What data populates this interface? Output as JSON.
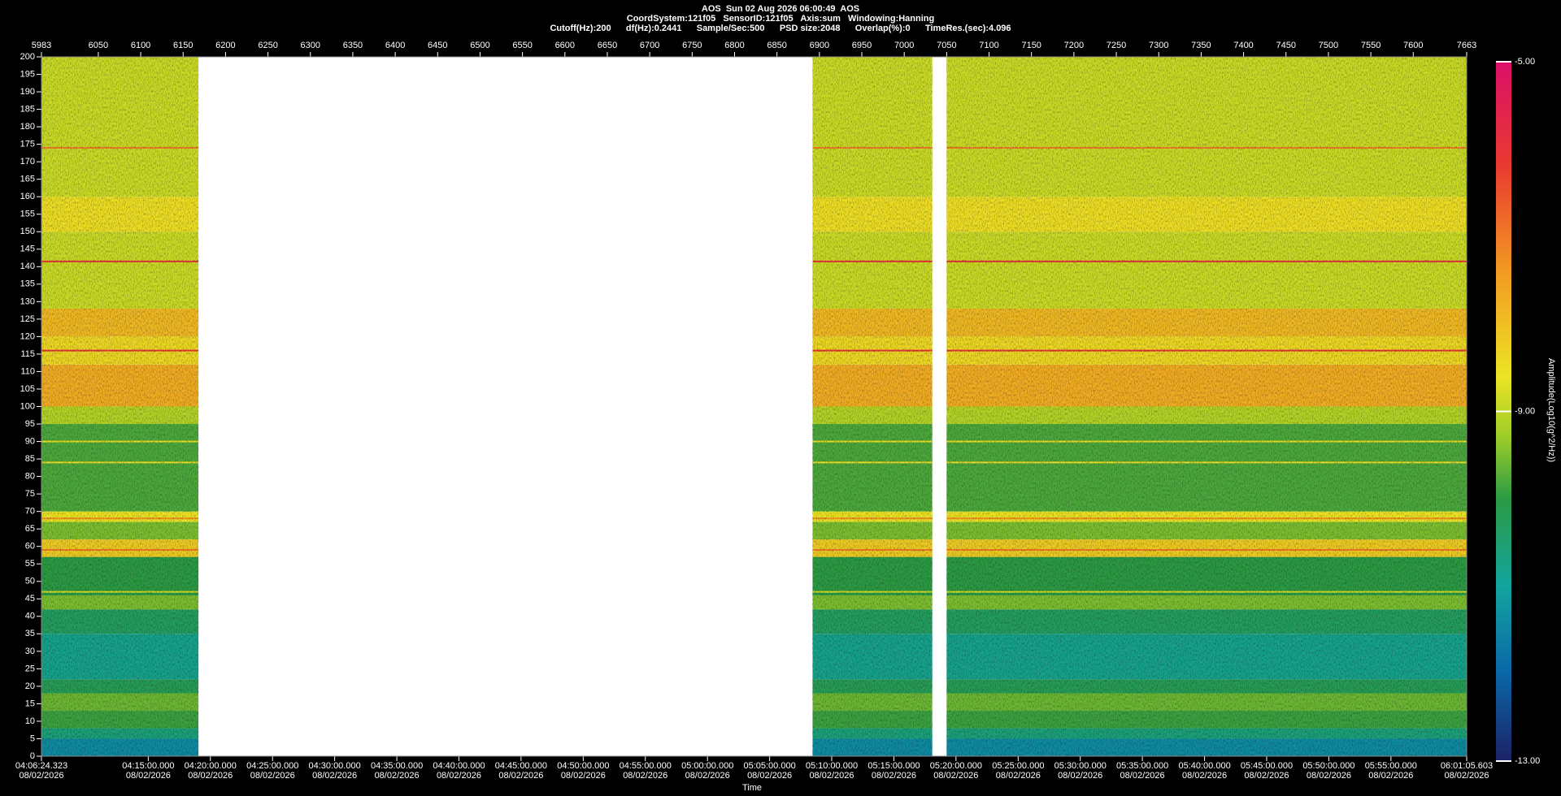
{
  "chart_data": {
    "type": "spectrogram",
    "title_lines": [
      "AOS  Sun 02 Aug 2026 06:00:49  AOS",
      "CoordSystem:121f05   SensorID:121f05   Axis:sum   Windowing:Hanning",
      "Cutoff(Hz):200      df(Hz):0.2441      Sample/Sec:500      PSD size:2048      Overlap(%):0      TimeRes.(sec):4.096"
    ],
    "xlim": [
      5983,
      7663
    ],
    "xticks": [
      5983,
      6050,
      6100,
      6150,
      6200,
      6250,
      6300,
      6350,
      6400,
      6450,
      6500,
      6550,
      6600,
      6650,
      6700,
      6750,
      6800,
      6850,
      6900,
      6950,
      7000,
      7050,
      7100,
      7150,
      7200,
      7250,
      7300,
      7350,
      7400,
      7450,
      7500,
      7550,
      7600,
      7663
    ],
    "time_ticks": [
      {
        "value": 5983,
        "label": "04:06:24.323",
        "date": "08/02/2026"
      },
      {
        "value": 6108.9,
        "label": "04:15:00.000",
        "date": "08/02/2026"
      },
      {
        "value": 6182.1,
        "label": "04:20:00.000",
        "date": "08/02/2026"
      },
      {
        "value": 6255.4,
        "label": "04:25:00.000",
        "date": "08/02/2026"
      },
      {
        "value": 6328.6,
        "label": "04:30:00.000",
        "date": "08/02/2026"
      },
      {
        "value": 6401.9,
        "label": "04:35:00.000",
        "date": "08/02/2026"
      },
      {
        "value": 6475.1,
        "label": "04:40:00.000",
        "date": "08/02/2026"
      },
      {
        "value": 6548.3,
        "label": "04:45:00.000",
        "date": "08/02/2026"
      },
      {
        "value": 6621.6,
        "label": "04:50:00.000",
        "date": "08/02/2026"
      },
      {
        "value": 6694.8,
        "label": "04:55:00.000",
        "date": "08/02/2026"
      },
      {
        "value": 6768.1,
        "label": "05:00:00.000",
        "date": "08/02/2026"
      },
      {
        "value": 6841.3,
        "label": "05:05:00.000",
        "date": "08/02/2026"
      },
      {
        "value": 6914.5,
        "label": "05:10:00.000",
        "date": "08/02/2026"
      },
      {
        "value": 6987.8,
        "label": "05:15:00.000",
        "date": "08/02/2026"
      },
      {
        "value": 7061.0,
        "label": "05:20:00.000",
        "date": "08/02/2026"
      },
      {
        "value": 7134.3,
        "label": "05:25:00.000",
        "date": "08/02/2026"
      },
      {
        "value": 7207.5,
        "label": "05:30:00.000",
        "date": "08/02/2026"
      },
      {
        "value": 7280.7,
        "label": "05:35:00.000",
        "date": "08/02/2026"
      },
      {
        "value": 7354.0,
        "label": "05:40:00.000",
        "date": "08/02/2026"
      },
      {
        "value": 7427.2,
        "label": "05:45:00.000",
        "date": "08/02/2026"
      },
      {
        "value": 7500.5,
        "label": "05:50:00.000",
        "date": "08/02/2026"
      },
      {
        "value": 7573.7,
        "label": "05:55:00.000",
        "date": "08/02/2026"
      },
      {
        "value": 7663,
        "label": "06:01:05.603",
        "date": "08/02/2026"
      }
    ],
    "xlabel": "Time",
    "ylim": [
      0,
      200
    ],
    "yticks": [
      0,
      5,
      10,
      15,
      20,
      25,
      30,
      35,
      40,
      45,
      50,
      55,
      60,
      65,
      70,
      75,
      80,
      85,
      90,
      95,
      100,
      105,
      110,
      115,
      120,
      125,
      130,
      135,
      140,
      145,
      150,
      155,
      160,
      165,
      170,
      175,
      180,
      185,
      190,
      195,
      200
    ],
    "segments": [
      [
        5983,
        6168
      ],
      [
        6892,
        7033
      ],
      [
        7050,
        7663
      ]
    ],
    "bands": [
      {
        "from": 0,
        "to": 5,
        "level": -11.4
      },
      {
        "from": 5,
        "to": 8,
        "level": -10.6
      },
      {
        "from": 8,
        "to": 13,
        "level": -9.9
      },
      {
        "from": 13,
        "to": 18,
        "level": -9.6
      },
      {
        "from": 18,
        "to": 22,
        "level": -10.2
      },
      {
        "from": 22,
        "to": 35,
        "level": -10.8
      },
      {
        "from": 35,
        "to": 42,
        "level": -10.3
      },
      {
        "from": 42,
        "to": 46,
        "level": -9.5
      },
      {
        "from": 46,
        "to": 57,
        "level": -10.0
      },
      {
        "from": 57,
        "to": 62,
        "level": -8.2
      },
      {
        "from": 62,
        "to": 67,
        "level": -9.5
      },
      {
        "from": 67,
        "to": 70,
        "level": -8.6
      },
      {
        "from": 70,
        "to": 95,
        "level": -9.8
      },
      {
        "from": 95,
        "to": 100,
        "level": -9.1
      },
      {
        "from": 100,
        "to": 112,
        "level": -7.7
      },
      {
        "from": 112,
        "to": 120,
        "level": -8.4
      },
      {
        "from": 120,
        "to": 128,
        "level": -7.9
      },
      {
        "from": 128,
        "to": 150,
        "level": -8.9
      },
      {
        "from": 150,
        "to": 160,
        "level": -8.5
      },
      {
        "from": 160,
        "to": 200,
        "level": -8.9
      }
    ],
    "lines": [
      {
        "freq": 174,
        "level": -7
      },
      {
        "freq": 141.5,
        "level": -6
      },
      {
        "freq": 116,
        "level": -6
      },
      {
        "freq": 90,
        "level": -8.5
      },
      {
        "freq": 84,
        "level": -8.5
      },
      {
        "freq": 68,
        "level": -7.3
      },
      {
        "freq": 59,
        "level": -7
      },
      {
        "freq": 47,
        "level": -8.8
      }
    ],
    "colorbar": {
      "label": "Amplitude(Log10(g^2/Hz))",
      "lim": [
        -13,
        -5
      ],
      "ticks": [
        {
          "value": -13,
          "label": "-13.00"
        },
        {
          "value": -9,
          "label": "-9.00"
        },
        {
          "value": -5,
          "label": "-5.00"
        }
      ],
      "scale": [
        [
          -13,
          "#1c2266"
        ],
        [
          -12,
          "#0a66a6"
        ],
        [
          -11,
          "#12a49e"
        ],
        [
          -10,
          "#2c9a44"
        ],
        [
          -9.3,
          "#9ccc28"
        ],
        [
          -8.6,
          "#ece424"
        ],
        [
          -7.4,
          "#f29a22"
        ],
        [
          -6.2,
          "#ea3a30"
        ],
        [
          -5,
          "#da1068"
        ]
      ]
    }
  }
}
